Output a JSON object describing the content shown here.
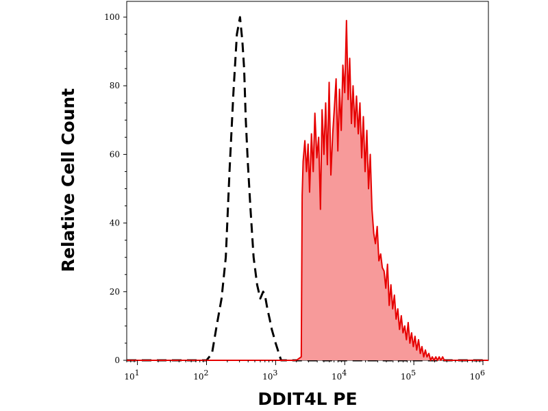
{
  "chart_data": {
    "type": "area",
    "title": "",
    "xlabel": "DDIT4L PE",
    "ylabel": "Relative Cell Count",
    "x_scale": "log",
    "xlim": [
      7,
      1200000
    ],
    "ylim": [
      0,
      101
    ],
    "x_ticks": [
      {
        "base": "10",
        "exp": "1",
        "value": 10
      },
      {
        "base": "10",
        "exp": "2",
        "value": 100
      },
      {
        "base": "10",
        "exp": "3",
        "value": 1000
      },
      {
        "base": "10",
        "exp": "4",
        "value": 10000
      },
      {
        "base": "10",
        "exp": "5",
        "value": 100000
      },
      {
        "base": "10",
        "exp": "6",
        "value": 1000000
      }
    ],
    "y_ticks": [
      "0",
      "20",
      "40",
      "60",
      "80",
      "100"
    ],
    "grid": false,
    "series": [
      {
        "style": "dashed",
        "color": "#000000",
        "fill": "none",
        "x": [
          7,
          100,
          120,
          140,
          165,
          190,
          215,
          245,
          275,
          305,
          330,
          350,
          370,
          395,
          430,
          480,
          540,
          600,
          660,
          700,
          760,
          820,
          880,
          940,
          1000,
          1200,
          1300,
          1500,
          10000,
          1000000,
          1200000
        ],
        "y": [
          0,
          0,
          2,
          10,
          18,
          30,
          55,
          78,
          95,
          100,
          93,
          85,
          70,
          58,
          45,
          30,
          22,
          18,
          20,
          19,
          15,
          12,
          9,
          7,
          5,
          0,
          0,
          0,
          0,
          0,
          0
        ]
      },
      {
        "style": "solid",
        "color": "#e60000",
        "fill": "#f79a9a",
        "x": [
          7,
          2000,
          2350,
          2420,
          2500,
          2650,
          2800,
          2950,
          3100,
          3300,
          3500,
          3700,
          3950,
          4200,
          4450,
          4700,
          5000,
          5300,
          5600,
          5950,
          6300,
          6700,
          7100,
          7500,
          7950,
          8400,
          8900,
          9400,
          10000,
          10600,
          11200,
          11800,
          12500,
          13200,
          14000,
          14800,
          15700,
          16600,
          17600,
          18600,
          19700,
          20900,
          22100,
          23400,
          24800,
          26300,
          27800,
          29500,
          31200,
          33100,
          35000,
          37100,
          39300,
          41600,
          44000,
          46600,
          49400,
          52300,
          55400,
          58600,
          62100,
          65800,
          69700,
          73800,
          78200,
          82800,
          87700,
          92800,
          98300,
          104000,
          110000,
          117000,
          124000,
          131000,
          139000,
          147000,
          155000,
          165000,
          175000,
          185000,
          196000,
          208000,
          220000,
          233000,
          246000,
          261000,
          276000,
          300000,
          1200000
        ],
        "y": [
          0,
          0,
          1,
          48,
          58,
          64,
          55,
          63,
          49,
          66,
          55,
          72,
          59,
          65,
          44,
          73,
          60,
          75,
          57,
          81,
          54,
          66,
          74,
          82,
          61,
          79,
          67,
          86,
          78,
          99,
          76,
          88,
          69,
          80,
          68,
          77,
          66,
          75,
          59,
          71,
          55,
          67,
          50,
          60,
          44,
          37,
          34,
          39,
          29,
          31,
          27,
          26,
          21,
          28,
          16,
          22,
          15,
          19,
          12,
          15,
          9,
          13,
          8,
          10,
          6,
          11,
          5,
          8,
          4,
          7,
          3,
          6,
          2,
          4,
          1,
          3,
          1,
          2,
          0,
          1,
          0,
          1,
          0,
          1,
          0,
          1,
          0,
          0,
          0
        ]
      }
    ]
  }
}
